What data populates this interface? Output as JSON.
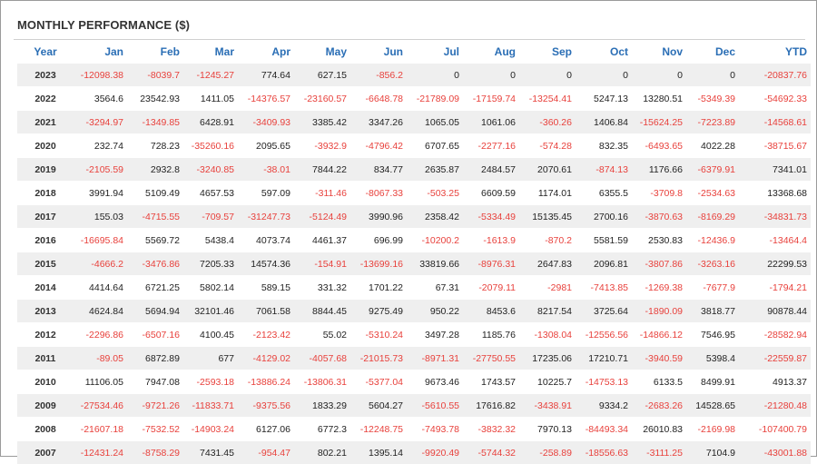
{
  "title": "MONTHLY PERFORMANCE ($)",
  "columns": [
    "Year",
    "Jan",
    "Feb",
    "Mar",
    "Apr",
    "May",
    "Jun",
    "Jul",
    "Aug",
    "Sep",
    "Oct",
    "Nov",
    "Dec",
    "YTD"
  ],
  "colors": {
    "header_text": "#2a6eb5",
    "negative": "#e8413c",
    "positive": "#222222",
    "row_shade": "#efefef"
  },
  "rows": [
    {
      "year": "2023",
      "values": [
        "-12098.38",
        "-8039.7",
        "-1245.27",
        "774.64",
        "627.15",
        "-856.2",
        "0",
        "0",
        "0",
        "0",
        "0",
        "0",
        "-20837.76"
      ]
    },
    {
      "year": "2022",
      "values": [
        "3564.6",
        "23542.93",
        "1411.05",
        "-14376.57",
        "-23160.57",
        "-6648.78",
        "-21789.09",
        "-17159.74",
        "-13254.41",
        "5247.13",
        "13280.51",
        "-5349.39",
        "-54692.33"
      ]
    },
    {
      "year": "2021",
      "values": [
        "-3294.97",
        "-1349.85",
        "6428.91",
        "-3409.93",
        "3385.42",
        "3347.26",
        "1065.05",
        "1061.06",
        "-360.26",
        "1406.84",
        "-15624.25",
        "-7223.89",
        "-14568.61"
      ]
    },
    {
      "year": "2020",
      "values": [
        "232.74",
        "728.23",
        "-35260.16",
        "2095.65",
        "-3932.9",
        "-4796.42",
        "6707.65",
        "-2277.16",
        "-574.28",
        "832.35",
        "-6493.65",
        "4022.28",
        "-38715.67"
      ]
    },
    {
      "year": "2019",
      "values": [
        "-2105.59",
        "2932.8",
        "-3240.85",
        "-38.01",
        "7844.22",
        "834.77",
        "2635.87",
        "2484.57",
        "2070.61",
        "-874.13",
        "1176.66",
        "-6379.91",
        "7341.01"
      ]
    },
    {
      "year": "2018",
      "values": [
        "3991.94",
        "5109.49",
        "4657.53",
        "597.09",
        "-311.46",
        "-8067.33",
        "-503.25",
        "6609.59",
        "1174.01",
        "6355.5",
        "-3709.8",
        "-2534.63",
        "13368.68"
      ]
    },
    {
      "year": "2017",
      "values": [
        "155.03",
        "-4715.55",
        "-709.57",
        "-31247.73",
        "-5124.49",
        "3990.96",
        "2358.42",
        "-5334.49",
        "15135.45",
        "2700.16",
        "-3870.63",
        "-8169.29",
        "-34831.73"
      ]
    },
    {
      "year": "2016",
      "values": [
        "-16695.84",
        "5569.72",
        "5438.4",
        "4073.74",
        "4461.37",
        "696.99",
        "-10200.2",
        "-1613.9",
        "-870.2",
        "5581.59",
        "2530.83",
        "-12436.9",
        "-13464.4"
      ]
    },
    {
      "year": "2015",
      "values": [
        "-4666.2",
        "-3476.86",
        "7205.33",
        "14574.36",
        "-154.91",
        "-13699.16",
        "33819.66",
        "-8976.31",
        "2647.83",
        "2096.81",
        "-3807.86",
        "-3263.16",
        "22299.53"
      ]
    },
    {
      "year": "2014",
      "values": [
        "4414.64",
        "6721.25",
        "5802.14",
        "589.15",
        "331.32",
        "1701.22",
        "67.31",
        "-2079.11",
        "-2981",
        "-7413.85",
        "-1269.38",
        "-7677.9",
        "-1794.21"
      ]
    },
    {
      "year": "2013",
      "values": [
        "4624.84",
        "5694.94",
        "32101.46",
        "7061.58",
        "8844.45",
        "9275.49",
        "950.22",
        "8453.6",
        "8217.54",
        "3725.64",
        "-1890.09",
        "3818.77",
        "90878.44"
      ]
    },
    {
      "year": "2012",
      "values": [
        "-2296.86",
        "-6507.16",
        "4100.45",
        "-2123.42",
        "55.02",
        "-5310.24",
        "3497.28",
        "1185.76",
        "-1308.04",
        "-12556.56",
        "-14866.12",
        "7546.95",
        "-28582.94"
      ]
    },
    {
      "year": "2011",
      "values": [
        "-89.05",
        "6872.89",
        "677",
        "-4129.02",
        "-4057.68",
        "-21015.73",
        "-8971.31",
        "-27750.55",
        "17235.06",
        "17210.71",
        "-3940.59",
        "5398.4",
        "-22559.87"
      ]
    },
    {
      "year": "2010",
      "values": [
        "11106.05",
        "7947.08",
        "-2593.18",
        "-13886.24",
        "-13806.31",
        "-5377.04",
        "9673.46",
        "1743.57",
        "10225.7",
        "-14753.13",
        "6133.5",
        "8499.91",
        "4913.37"
      ]
    },
    {
      "year": "2009",
      "values": [
        "-27534.46",
        "-9721.26",
        "-11833.71",
        "-9375.56",
        "1833.29",
        "5604.27",
        "-5610.55",
        "17616.82",
        "-3438.91",
        "9334.2",
        "-2683.26",
        "14528.65",
        "-21280.48"
      ]
    },
    {
      "year": "2008",
      "values": [
        "-21607.18",
        "-7532.52",
        "-14903.24",
        "6127.06",
        "6772.3",
        "-12248.75",
        "-7493.78",
        "-3832.32",
        "7970.13",
        "-84493.34",
        "26010.83",
        "-2169.98",
        "-107400.79"
      ]
    },
    {
      "year": "2007",
      "values": [
        "-12431.24",
        "-8758.29",
        "7431.45",
        "-954.47",
        "802.21",
        "1395.14",
        "-9920.49",
        "-5744.32",
        "-258.89",
        "-18556.63",
        "-3111.25",
        "7104.9",
        "-43001.88"
      ]
    }
  ]
}
